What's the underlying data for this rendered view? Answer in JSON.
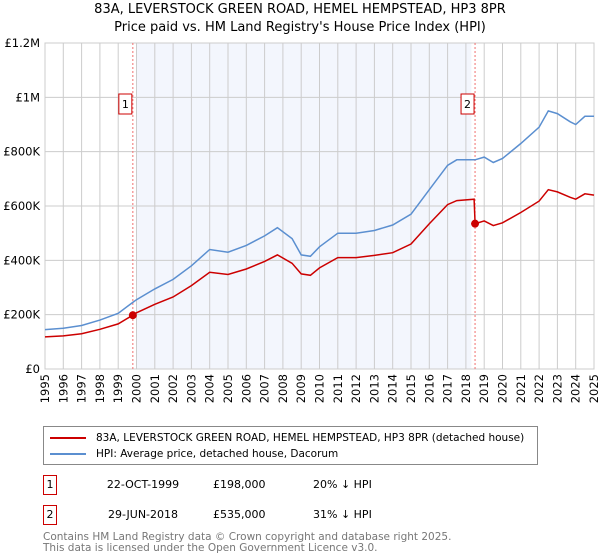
{
  "title": "83A, LEVERSTOCK GREEN ROAD, HEMEL HEMPSTEAD, HP3 8PR",
  "subtitle": "Price paid vs. HM Land Registry's House Price Index (HPI)",
  "chart_data": {
    "type": "line",
    "xlim": [
      1995,
      2025
    ],
    "ylim": [
      0,
      1200000
    ],
    "yticks": [
      {
        "v": 0,
        "label": "£0"
      },
      {
        "v": 200000,
        "label": "£200K"
      },
      {
        "v": 400000,
        "label": "£400K"
      },
      {
        "v": 600000,
        "label": "£600K"
      },
      {
        "v": 800000,
        "label": "£800K"
      },
      {
        "v": 1000000,
        "label": "£1M"
      },
      {
        "v": 1200000,
        "label": "£1.2M"
      }
    ],
    "xticks": [
      "1995",
      "1996",
      "1997",
      "1998",
      "1999",
      "2000",
      "2001",
      "2002",
      "2003",
      "2004",
      "2005",
      "2006",
      "2007",
      "2008",
      "2009",
      "2010",
      "2011",
      "2012",
      "2013",
      "2014",
      "2015",
      "2016",
      "2017",
      "2018",
      "2019",
      "2020",
      "2021",
      "2022",
      "2023",
      "2024",
      "2025"
    ],
    "grid": true,
    "shaded_range": [
      2000.0,
      2018.3
    ],
    "series": [
      {
        "name": "83A, LEVERSTOCK GREEN ROAD, HEMEL HEMPSTEAD, HP3 8PR (detached house)",
        "color": "#cc0000",
        "x": [
          1995,
          1996,
          1997,
          1998,
          1999,
          1999.8,
          2000,
          2001,
          2002,
          2003,
          2004,
          2005,
          2006,
          2007,
          2007.7,
          2008.5,
          2009,
          2009.5,
          2010,
          2011,
          2012,
          2013,
          2014,
          2015,
          2016,
          2017,
          2017.5,
          2018.45,
          2018.5,
          2019,
          2019.5,
          2020,
          2021,
          2022,
          2022.5,
          2023,
          2023.7,
          2024,
          2024.5,
          2025
        ],
        "y": [
          118000,
          122000,
          130000,
          146000,
          166000,
          198000,
          207000,
          238000,
          265000,
          307000,
          356000,
          348000,
          368000,
          396000,
          420000,
          389000,
          350000,
          345000,
          372000,
          410000,
          410000,
          418000,
          428000,
          460000,
          535000,
          605000,
          620000,
          625000,
          535000,
          545000,
          528000,
          538000,
          576000,
          618000,
          660000,
          652000,
          632000,
          625000,
          645000,
          640000
        ]
      },
      {
        "name": "HPI: Average price, detached house, Dacorum",
        "color": "#5b8fd0",
        "x": [
          1995,
          1996,
          1997,
          1998,
          1999,
          1999.8,
          2000,
          2001,
          2002,
          2003,
          2004,
          2005,
          2006,
          2007,
          2007.7,
          2008.5,
          2009,
          2009.5,
          2010,
          2011,
          2012,
          2013,
          2014,
          2015,
          2016,
          2017,
          2017.5,
          2018.5,
          2019,
          2019.5,
          2020,
          2021,
          2022,
          2022.5,
          2023,
          2023.7,
          2024,
          2024.5,
          2025
        ],
        "y": [
          145000,
          150000,
          160000,
          180000,
          205000,
          245000,
          255000,
          295000,
          330000,
          380000,
          440000,
          430000,
          455000,
          490000,
          520000,
          480000,
          420000,
          415000,
          450000,
          500000,
          500000,
          510000,
          530000,
          570000,
          660000,
          750000,
          770000,
          770000,
          780000,
          760000,
          775000,
          830000,
          890000,
          950000,
          940000,
          910000,
          900000,
          930000,
          930000
        ]
      }
    ],
    "sales": [
      {
        "label": "1",
        "x": 1999.8,
        "y": 198000
      },
      {
        "label": "2",
        "x": 2018.5,
        "y": 535000
      }
    ]
  },
  "legend": {
    "property": "83A, LEVERSTOCK GREEN ROAD, HEMEL HEMPSTEAD, HP3 8PR (detached house)",
    "hpi": "HPI: Average price, detached house, Dacorum"
  },
  "transactions": [
    {
      "num": "1",
      "date": "22-OCT-1999",
      "price": "£198,000",
      "hpi": "20% ↓ HPI"
    },
    {
      "num": "2",
      "date": "29-JUN-2018",
      "price": "£535,000",
      "hpi": "31% ↓ HPI"
    }
  ],
  "footer": {
    "line1": "Contains HM Land Registry data © Crown copyright and database right 2025.",
    "line2": "This data is licensed under the Open Government Licence v3.0."
  }
}
